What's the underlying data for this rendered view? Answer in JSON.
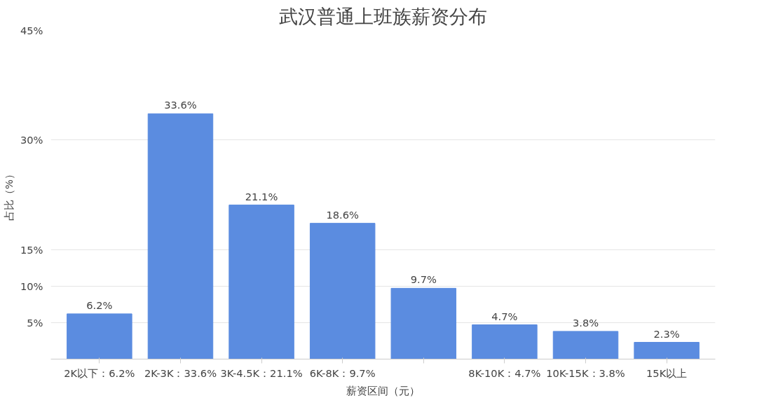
{
  "chart_data": {
    "type": "bar",
    "title": "武汉普通上班族薪资分布",
    "xlabel": "薪资区间（元）",
    "ylabel": "占比（%）",
    "categories": [
      "2K以下：6.2%",
      "2K-3K：33.6%",
      "3K-4.5K：21.1%",
      "6K-8K：9.7%",
      null,
      "8K-10K：4.7%",
      "10K-15K：3.8%",
      "15K以上"
    ],
    "values": [
      6.2,
      33.6,
      21.1,
      18.6,
      9.7,
      4.7,
      3.8,
      2.3
    ],
    "value_labels": [
      "6.2%",
      "33.6%",
      "21.1%",
      "18.6%",
      "9.7%",
      "4.7%",
      "3.8%",
      "2.3%"
    ],
    "color": "#5b8ce0",
    "ylim": [
      0,
      45
    ],
    "yticks": [
      {
        "value": 5,
        "label": "5%"
      },
      {
        "value": 10,
        "label": "10%"
      },
      {
        "value": 15,
        "label": "15%"
      },
      {
        "value": 30,
        "label": "30%"
      },
      {
        "value": 45,
        "label": "45%"
      }
    ],
    "grid": "y"
  }
}
